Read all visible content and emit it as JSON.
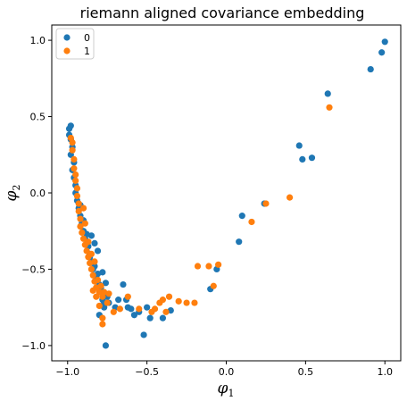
{
  "chart_data": {
    "type": "scatter",
    "title": "riemann aligned covariance embedding",
    "xlabel": "φ",
    "xlabel_sub": "1",
    "ylabel": "φ",
    "ylabel_sub": "2",
    "xlim": [
      -1.1,
      1.1
    ],
    "ylim": [
      -1.1,
      1.1
    ],
    "xticks": [
      -1.0,
      -0.5,
      0.0,
      0.5,
      1.0
    ],
    "xtick_labels": [
      "−1.0",
      "−0.5",
      "0.0",
      "0.5",
      "1.0"
    ],
    "yticks": [
      -1.0,
      -0.5,
      0.0,
      0.5,
      1.0
    ],
    "ytick_labels": [
      "−1.0",
      "−0.5",
      "0.0",
      "0.5",
      "1.0"
    ],
    "grid": false,
    "legend_position": "top-left",
    "series": [
      {
        "name": "0",
        "color": "#1f77b4",
        "points": [
          [
            -0.99,
            0.42
          ],
          [
            -0.98,
            0.44
          ],
          [
            -0.99,
            0.38
          ],
          [
            -0.98,
            0.35
          ],
          [
            -0.97,
            0.3
          ],
          [
            -0.98,
            0.25
          ],
          [
            -0.96,
            0.2
          ],
          [
            -0.97,
            0.15
          ],
          [
            -0.96,
            0.1
          ],
          [
            -0.95,
            0.05
          ],
          [
            -0.95,
            0.0
          ],
          [
            -0.94,
            -0.05
          ],
          [
            -0.93,
            -0.1
          ],
          [
            -0.92,
            -0.15
          ],
          [
            -0.91,
            -0.2
          ],
          [
            -0.9,
            -0.25
          ],
          [
            -0.89,
            -0.3
          ],
          [
            -0.87,
            -0.35
          ],
          [
            -0.86,
            -0.4
          ],
          [
            -0.85,
            -0.45
          ],
          [
            -0.84,
            -0.5
          ],
          [
            -0.82,
            -0.55
          ],
          [
            -0.8,
            -0.6
          ],
          [
            -0.79,
            -0.65
          ],
          [
            -0.78,
            -0.7
          ],
          [
            -0.77,
            -0.75
          ],
          [
            -0.8,
            -0.8
          ],
          [
            -0.76,
            -1.0
          ],
          [
            -0.85,
            -0.28
          ],
          [
            -0.83,
            -0.33
          ],
          [
            -0.81,
            -0.38
          ],
          [
            -0.78,
            -0.52
          ],
          [
            -0.76,
            -0.59
          ],
          [
            -0.75,
            -0.68
          ],
          [
            -0.65,
            -0.6
          ],
          [
            -0.63,
            -0.7
          ],
          [
            -0.62,
            -0.75
          ],
          [
            -0.58,
            -0.8
          ],
          [
            -0.52,
            -0.93
          ],
          [
            -0.5,
            -0.75
          ],
          [
            -0.48,
            -0.82
          ],
          [
            -0.4,
            -0.82
          ],
          [
            -0.35,
            -0.77
          ],
          [
            -0.1,
            -0.63
          ],
          [
            -0.06,
            -0.5
          ],
          [
            0.08,
            -0.32
          ],
          [
            0.1,
            -0.15
          ],
          [
            0.24,
            -0.07
          ],
          [
            0.46,
            0.31
          ],
          [
            0.48,
            0.22
          ],
          [
            0.54,
            0.23
          ],
          [
            0.64,
            0.65
          ],
          [
            0.91,
            0.81
          ],
          [
            0.98,
            0.92
          ],
          [
            1.0,
            0.99
          ],
          [
            -0.92,
            -0.08
          ],
          [
            -0.9,
            -0.18
          ],
          [
            -0.88,
            -0.27
          ],
          [
            -0.86,
            -0.42
          ],
          [
            -0.83,
            -0.48
          ],
          [
            -0.81,
            -0.53
          ],
          [
            -0.79,
            -0.62
          ],
          [
            -0.77,
            -0.72
          ],
          [
            -0.74,
            -0.72
          ],
          [
            -0.7,
            -0.75
          ],
          [
            -0.68,
            -0.7
          ],
          [
            -0.6,
            -0.76
          ],
          [
            -0.55,
            -0.78
          ]
        ]
      },
      {
        "name": "1",
        "color": "#ff7f0e",
        "points": [
          [
            -0.98,
            0.36
          ],
          [
            -0.97,
            0.33
          ],
          [
            -0.97,
            0.28
          ],
          [
            -0.96,
            0.22
          ],
          [
            -0.96,
            0.16
          ],
          [
            -0.95,
            0.12
          ],
          [
            -0.95,
            0.08
          ],
          [
            -0.94,
            0.03
          ],
          [
            -0.94,
            -0.02
          ],
          [
            -0.93,
            -0.07
          ],
          [
            -0.93,
            -0.12
          ],
          [
            -0.92,
            -0.17
          ],
          [
            -0.92,
            -0.22
          ],
          [
            -0.91,
            -0.26
          ],
          [
            -0.9,
            -0.3
          ],
          [
            -0.89,
            -0.34
          ],
          [
            -0.88,
            -0.38
          ],
          [
            -0.87,
            -0.42
          ],
          [
            -0.86,
            -0.46
          ],
          [
            -0.85,
            -0.5
          ],
          [
            -0.84,
            -0.54
          ],
          [
            -0.83,
            -0.58
          ],
          [
            -0.82,
            -0.62
          ],
          [
            -0.8,
            -0.65
          ],
          [
            -0.78,
            -0.68
          ],
          [
            -0.74,
            -0.66
          ],
          [
            -0.8,
            -0.74
          ],
          [
            -0.78,
            -0.82
          ],
          [
            -0.78,
            -0.86
          ],
          [
            -0.75,
            -0.72
          ],
          [
            -0.71,
            -0.78
          ],
          [
            -0.67,
            -0.76
          ],
          [
            -0.62,
            -0.68
          ],
          [
            -0.55,
            -0.76
          ],
          [
            -0.47,
            -0.78
          ],
          [
            -0.45,
            -0.76
          ],
          [
            -0.42,
            -0.72
          ],
          [
            -0.4,
            -0.7
          ],
          [
            -0.36,
            -0.68
          ],
          [
            -0.3,
            -0.71
          ],
          [
            -0.25,
            -0.72
          ],
          [
            -0.2,
            -0.72
          ],
          [
            -0.18,
            -0.48
          ],
          [
            -0.11,
            -0.48
          ],
          [
            -0.08,
            -0.61
          ],
          [
            -0.05,
            -0.47
          ],
          [
            0.16,
            -0.19
          ],
          [
            0.25,
            -0.07
          ],
          [
            0.4,
            -0.03
          ],
          [
            0.65,
            0.56
          ],
          [
            -0.38,
            -0.78
          ],
          [
            -0.9,
            -0.1
          ],
          [
            -0.89,
            -0.2
          ],
          [
            -0.87,
            -0.32
          ],
          [
            -0.85,
            -0.4
          ],
          [
            -0.83,
            -0.45
          ],
          [
            -0.81,
            -0.57
          ],
          [
            -0.79,
            -0.61
          ],
          [
            -0.77,
            -0.65
          ],
          [
            -0.82,
            -0.68
          ],
          [
            -0.84,
            -0.64
          ]
        ]
      }
    ]
  }
}
